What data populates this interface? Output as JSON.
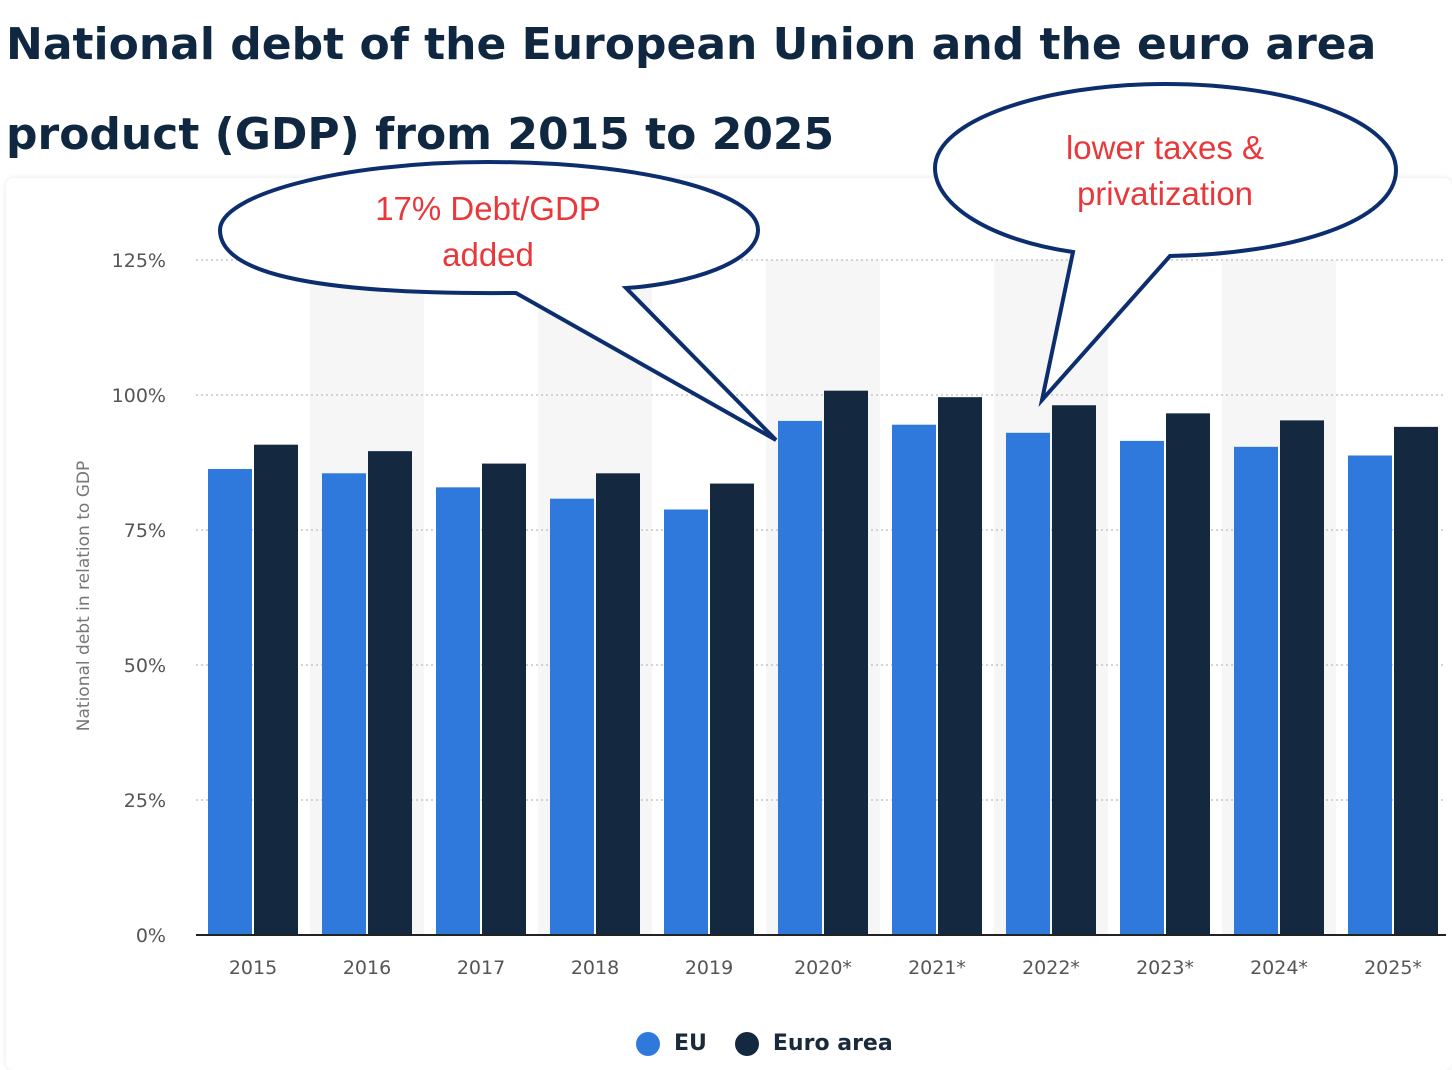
{
  "title": "National debt of the European Union and the euro area\nproduct (GDP) from 2015 to 2025",
  "chart_data": {
    "type": "bar",
    "title": "National debt of the European Union and the euro area product (GDP) from 2015 to 2025",
    "ylabel": "National debt in relation to GDP",
    "categories": [
      "2015",
      "2016",
      "2017",
      "2018",
      "2019",
      "2020*",
      "2021*",
      "2022*",
      "2023*",
      "2024*",
      "2025*"
    ],
    "series": [
      {
        "name": "EU",
        "color": "#2f79dc",
        "values": [
          86.3,
          85.5,
          82.9,
          80.8,
          78.8,
          95.2,
          94.5,
          93.0,
          91.5,
          90.4,
          88.8
        ]
      },
      {
        "name": "Euro area",
        "color": "#14283f",
        "values": [
          90.8,
          89.6,
          87.3,
          85.5,
          83.6,
          100.8,
          99.6,
          98.1,
          96.6,
          95.3,
          94.1
        ]
      }
    ],
    "ylim": [
      0,
      125
    ],
    "yticks": [
      0,
      25,
      50,
      75,
      100,
      125
    ],
    "ytick_labels": [
      "0%",
      "25%",
      "50%",
      "75%",
      "100%",
      "125%"
    ],
    "grid": true,
    "legend": "bottom-center"
  },
  "legend": {
    "eu_label": "EU",
    "euro_label": "Euro area"
  },
  "annotations": [
    {
      "text": "17% Debt/GDP\nadded",
      "color": "#e8383a"
    },
    {
      "text": "lower taxes &\nprivatization",
      "color": "#e8383a"
    }
  ],
  "colors": {
    "title": "#0f2740",
    "bubble_border": "#0d2e6e",
    "band": "#f6f6f6"
  }
}
